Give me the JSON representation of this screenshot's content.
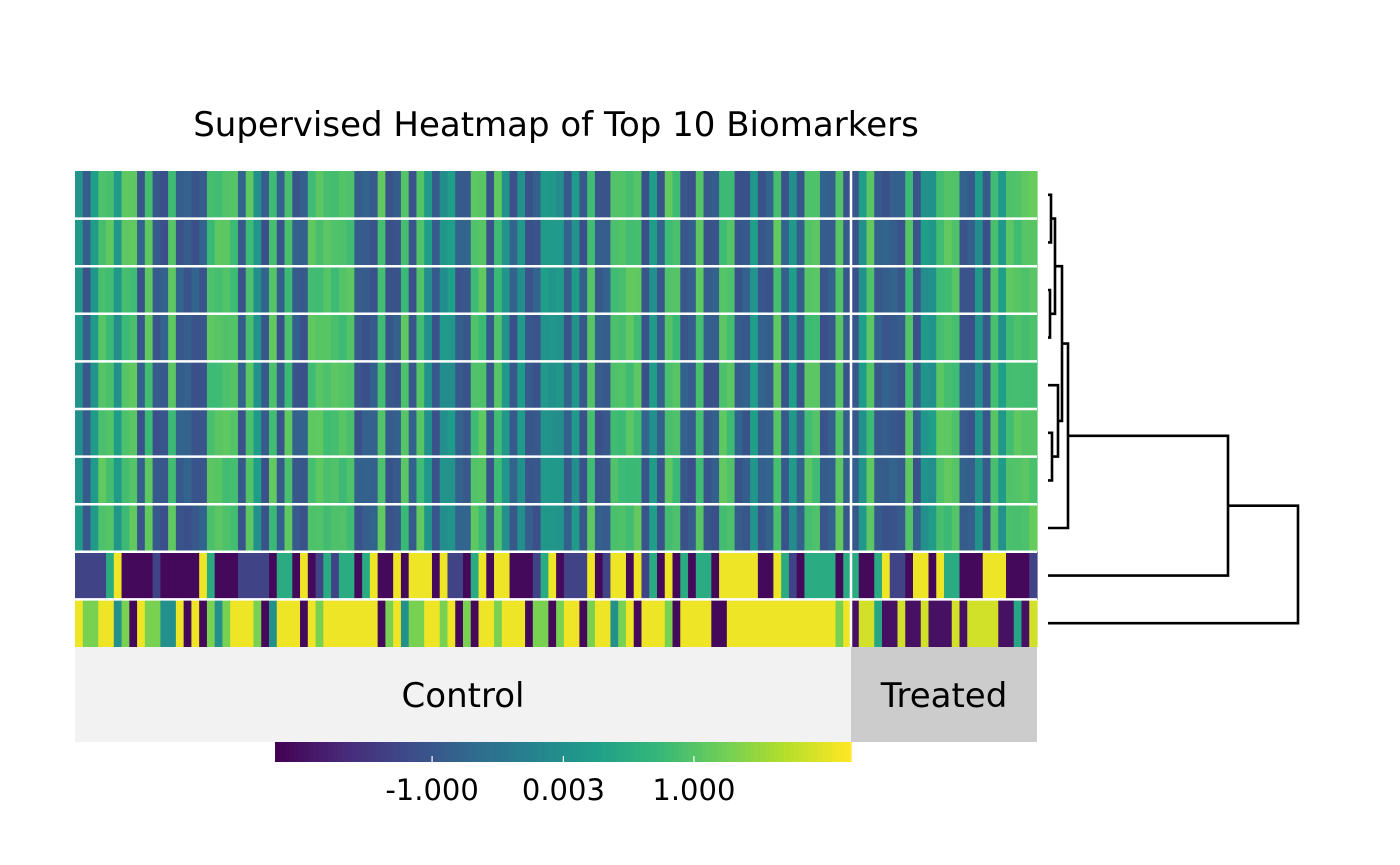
{
  "chart_data": {
    "type": "heatmap",
    "title": "Supervised Heatmap of Top 10 Biomarkers",
    "rows": 10,
    "groups": [
      {
        "label": "Control",
        "n_samples": 100,
        "color": "#f2f2f2"
      },
      {
        "label": "Treated",
        "n_samples": 24,
        "color": "#cccccc"
      }
    ],
    "colorbar": {
      "scale": "viridis",
      "range": [
        -2.2,
        2.2
      ],
      "tick_values": [
        -1.0,
        0.003,
        1.0
      ],
      "tick_labels": [
        "-1.000",
        "0.003",
        "1.000"
      ]
    },
    "seed": 7,
    "dendrogram": {
      "leaves": 10,
      "merges": [
        [
          0,
          1,
          0.15
        ],
        [
          2,
          3,
          0.1
        ],
        [
          10,
          11,
          0.35
        ],
        [
          5,
          6,
          0.2
        ],
        [
          4,
          13,
          0.5
        ],
        [
          12,
          14,
          0.7
        ],
        [
          15,
          7,
          1.0
        ],
        [
          16,
          8,
          9.0
        ],
        [
          17,
          9,
          12.5
        ]
      ]
    }
  }
}
